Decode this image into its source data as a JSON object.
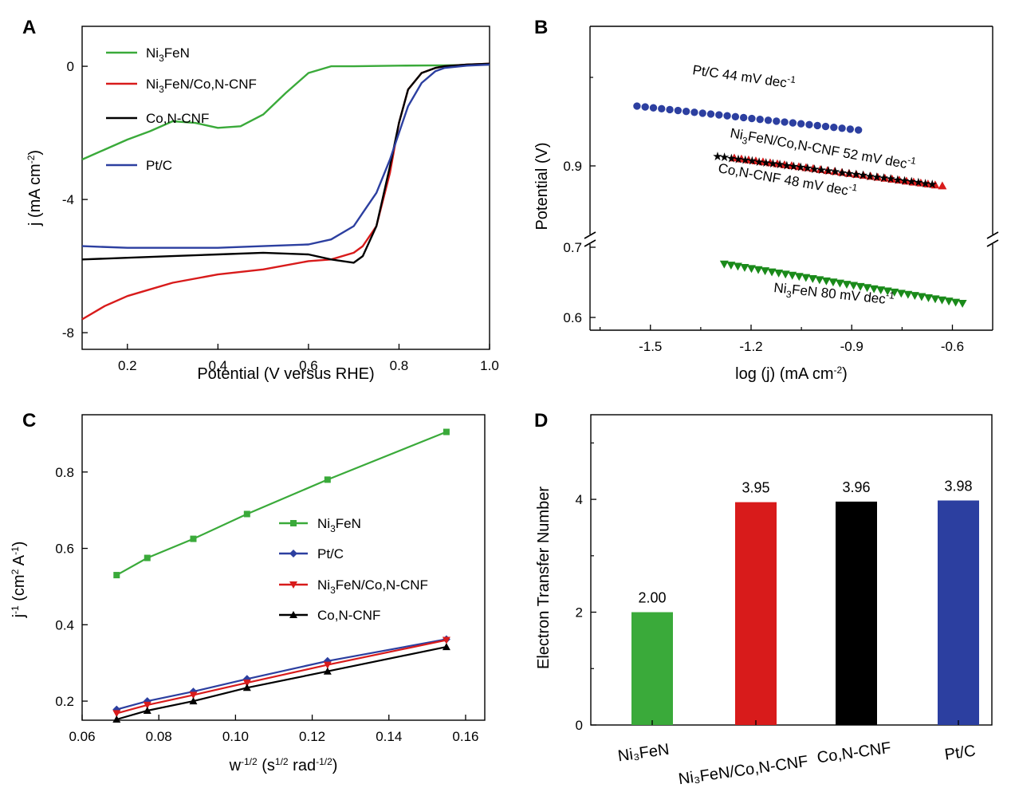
{
  "chart_data": [
    {
      "panel": "A",
      "type": "line",
      "xlabel": "Potential (V versus RHE)",
      "ylabel": "j (mA cm-2)",
      "ylabel_parts": [
        "j (mA cm",
        "-2",
        ")"
      ],
      "xlim": [
        0.1,
        1.0
      ],
      "ylim": [
        -8.5,
        1.2
      ],
      "xticks": [
        "0.2",
        "0.4",
        "0.6",
        "0.8",
        "1.0"
      ],
      "yticks": [
        "0",
        "-4",
        "-8"
      ],
      "legend": "top-left",
      "series": [
        {
          "name": "Ni3FeN",
          "name_parts": [
            "Ni",
            "3",
            "FeN"
          ],
          "color": "#3aaa3a",
          "x": [
            0.1,
            0.15,
            0.2,
            0.25,
            0.3,
            0.35,
            0.4,
            0.45,
            0.5,
            0.55,
            0.6,
            0.65,
            0.7,
            0.8,
            0.9,
            1.0
          ],
          "y": [
            -2.8,
            -2.5,
            -2.2,
            -1.95,
            -1.65,
            -1.7,
            -1.85,
            -1.8,
            -1.45,
            -0.8,
            -0.2,
            0,
            0,
            0.02,
            0.03,
            0.05
          ]
        },
        {
          "name": "Ni3FeN/Co,N-CNF",
          "name_parts": [
            "Ni",
            "3",
            "FeN/Co,N-CNF"
          ],
          "color": "#d81b1b",
          "x": [
            0.1,
            0.15,
            0.2,
            0.25,
            0.3,
            0.4,
            0.5,
            0.6,
            0.65,
            0.7,
            0.72,
            0.75,
            0.78,
            0.8,
            0.82,
            0.85,
            0.88,
            0.9,
            0.95,
            1.0
          ],
          "y": [
            -7.6,
            -7.2,
            -6.9,
            -6.7,
            -6.5,
            -6.25,
            -6.1,
            -5.85,
            -5.8,
            -5.6,
            -5.4,
            -4.8,
            -3.2,
            -1.7,
            -0.7,
            -0.2,
            -0.05,
            0,
            0.05,
            0.08
          ]
        },
        {
          "name": "Co,N-CNF",
          "name_parts": [
            "Co,N-CNF"
          ],
          "color": "#000000",
          "x": [
            0.1,
            0.2,
            0.3,
            0.4,
            0.5,
            0.6,
            0.65,
            0.7,
            0.72,
            0.75,
            0.78,
            0.8,
            0.82,
            0.85,
            0.88,
            0.9,
            0.95,
            1.0
          ],
          "y": [
            -5.8,
            -5.75,
            -5.7,
            -5.65,
            -5.6,
            -5.65,
            -5.8,
            -5.9,
            -5.7,
            -4.8,
            -3.0,
            -1.7,
            -0.7,
            -0.2,
            -0.05,
            0,
            0.05,
            0.08
          ]
        },
        {
          "name": "Pt/C",
          "name_parts": [
            "Pt/C"
          ],
          "color": "#2c3fa0",
          "x": [
            0.1,
            0.2,
            0.3,
            0.4,
            0.5,
            0.6,
            0.65,
            0.7,
            0.72,
            0.75,
            0.78,
            0.8,
            0.82,
            0.85,
            0.88,
            0.9,
            0.95,
            1.0
          ],
          "y": [
            -5.4,
            -5.45,
            -5.45,
            -5.45,
            -5.4,
            -5.35,
            -5.2,
            -4.8,
            -4.4,
            -3.8,
            -2.8,
            -2.0,
            -1.2,
            -0.5,
            -0.15,
            -0.05,
            0.02,
            0.05
          ]
        }
      ]
    },
    {
      "panel": "B",
      "type": "scatter",
      "xlabel": "log (j) (mA cm-2)",
      "xlabel_parts": [
        "log (j) (mA cm",
        "-2",
        ")"
      ],
      "ylabel": "Potential (V)",
      "xlim": [
        -1.68,
        -0.48
      ],
      "yticks_upper": [
        "0.9"
      ],
      "yticks_lower": [
        "0.7",
        "0.6"
      ],
      "xticks": [
        "-1.5",
        "-1.2",
        "-0.9",
        "-0.6"
      ],
      "axis_break": true,
      "series": [
        {
          "name": "Pt/C",
          "color": "#2c3fa0",
          "marker": "circle",
          "segment": "upper",
          "x_start": -1.54,
          "x_end": -0.88,
          "y_start": 0.975,
          "y_end": 0.945,
          "count": 28,
          "label_parts": [
            [
              "Pt/C  44 mV dec",
              ""
            ],
            [
              "-1",
              "sup"
            ]
          ]
        },
        {
          "name": "Ni3FeN/Co,N-CNF",
          "color": "#d81b1b",
          "marker": "triangle-up",
          "segment": "upper",
          "x_start": -1.25,
          "x_end": -0.63,
          "y_start": 0.91,
          "y_end": 0.875,
          "count": 30,
          "label_parts": [
            [
              "Ni",
              ""
            ],
            [
              "3",
              "sub"
            ],
            [
              "FeN/Co,N-CNF  52 mV dec",
              ""
            ],
            [
              "-1",
              "sup"
            ]
          ]
        },
        {
          "name": "Co,N-CNF",
          "color": "#000000",
          "marker": "star",
          "segment": "upper",
          "x_start": -1.3,
          "x_end": -0.66,
          "y_start": 0.912,
          "y_end": 0.877,
          "count": 32,
          "label_parts": [
            [
              "Co,N-CNF  48 mV dec",
              ""
            ],
            [
              "-1",
              "sup"
            ]
          ]
        },
        {
          "name": "Ni3FeN",
          "color": "#1a8a1a",
          "marker": "triangle-down",
          "segment": "lower",
          "x_start": -1.28,
          "x_end": -0.57,
          "y_start": 0.676,
          "y_end": 0.62,
          "count": 36,
          "label_parts": [
            [
              "Ni",
              ""
            ],
            [
              "3",
              "sub"
            ],
            [
              "FeN  80 mV dec",
              ""
            ],
            [
              "-1",
              "sup"
            ]
          ]
        }
      ]
    },
    {
      "panel": "C",
      "type": "line",
      "xlabel": "w-1/2 (s1/2 rad-1/2)",
      "ylabel": "j-1 (cm2 A-1)",
      "xlim": [
        0.06,
        0.165
      ],
      "ylim": [
        0.15,
        0.95
      ],
      "xticks": [
        "0.06",
        "0.08",
        "0.10",
        "0.12",
        "0.14",
        "0.16"
      ],
      "yticks": [
        "0.2",
        "0.4",
        "0.6",
        "0.8"
      ],
      "legend": "center-right",
      "x": [
        0.069,
        0.077,
        0.089,
        0.103,
        0.124,
        0.155
      ],
      "series": [
        {
          "name": "Ni3FeN",
          "name_parts": [
            "Ni",
            "3",
            "FeN"
          ],
          "color": "#3aaa3a",
          "marker": "square",
          "values": [
            0.53,
            0.575,
            0.625,
            0.69,
            0.78,
            0.905
          ]
        },
        {
          "name": "Pt/C",
          "name_parts": [
            "Pt/C"
          ],
          "color": "#2c3fa0",
          "marker": "diamond",
          "values": [
            0.178,
            0.2,
            0.225,
            0.258,
            0.305,
            0.362
          ]
        },
        {
          "name": "Ni3FeN/Co,N-CNF",
          "name_parts": [
            "Ni",
            "3",
            "FeN/Co,N-CNF"
          ],
          "color": "#d81b1b",
          "marker": "triangle-down",
          "values": [
            0.168,
            0.19,
            0.216,
            0.248,
            0.295,
            0.36
          ]
        },
        {
          "name": "Co,N-CNF",
          "name_parts": [
            "Co,N-CNF"
          ],
          "color": "#000000",
          "marker": "triangle-up",
          "values": [
            0.152,
            0.175,
            0.2,
            0.235,
            0.278,
            0.342
          ]
        }
      ]
    },
    {
      "panel": "D",
      "type": "bar",
      "ylabel": "Electron Transfer Number",
      "ylim": [
        0,
        5.5
      ],
      "yticks": [
        "0",
        "2",
        "4"
      ],
      "categories": [
        "Ni3FeN",
        "Ni3FeN/Co,N-CNF",
        "Co,N-CNF",
        "Pt/C"
      ],
      "category_labels": [
        "Ni₃FeN",
        "Ni₃FeN/Co,N-CNF",
        "Co,N-CNF",
        "Pt/C"
      ],
      "values": [
        2.0,
        3.95,
        3.96,
        3.98
      ],
      "value_labels": [
        "2.00",
        "3.95",
        "3.96",
        "3.98"
      ],
      "colors": [
        "#3aaa3a",
        "#d81b1b",
        "#000000",
        "#2c3fa0"
      ]
    }
  ]
}
